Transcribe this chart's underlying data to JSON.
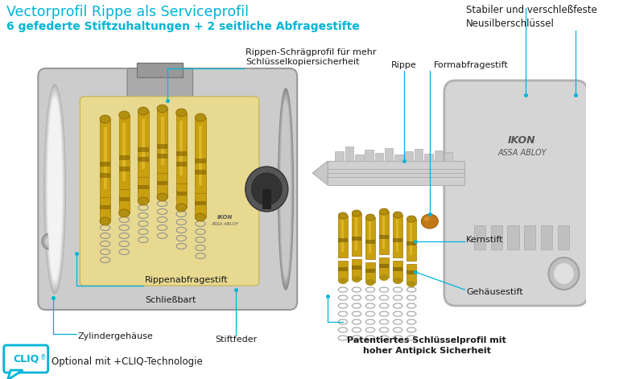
{
  "bg_color": "#ffffff",
  "cyan_color": "#00b4d8",
  "dark_text": "#1a1a1a",
  "title1": "Vectorprofil Rippe als Serviceprofil",
  "title2": "6 gefederte Stiftzuhaltungen + 2 seitliche Abfragestifte",
  "top_right": "Stabiler und verschleßfeste\nNeusilberschlüssel",
  "label_rippen_schraeg": "Rippen-Schrägprofil für mehr\nSchlüsselkopiersicherheit",
  "label_rippe": "Rippe",
  "label_formabfrage": "Formabfragestift",
  "label_rippenabfrage": "Rippenabfragestift",
  "label_schliessbart": "Schließbart",
  "label_zylinder": "Zylindergehäuse",
  "label_stiftfeder": "Stiftfeder",
  "label_kernstift": "Kernstift",
  "label_gehaeusestift": "Gehäusestift",
  "label_patentiert": "Patentiertes Schlüsselprofil mit\nhoher Antipick Sicherheit",
  "label_cliq": "Optional mit +CLIQ-Technologie"
}
